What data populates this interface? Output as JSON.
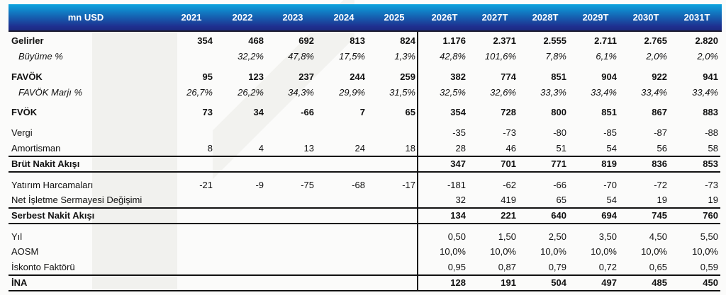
{
  "table": {
    "corner_label": "mn USD",
    "columns": [
      "2021",
      "2022",
      "2023",
      "2024",
      "2025",
      "2026T",
      "2027T",
      "2028T",
      "2029T",
      "2030T",
      "2031T"
    ],
    "rows": [
      {
        "label": "Gelirler",
        "style": "bold",
        "values": [
          "354",
          "468",
          "692",
          "813",
          "824",
          "1.176",
          "2.371",
          "2.555",
          "2.711",
          "2.765",
          "2.820"
        ]
      },
      {
        "label": "Büyüme %",
        "style": "ital",
        "values": [
          "",
          "32,2%",
          "47,8%",
          "17,5%",
          "1,3%",
          "42,8%",
          "101,6%",
          "7,8%",
          "6,1%",
          "2,0%",
          "2,0%"
        ]
      },
      {
        "label": "FAVÖK",
        "style": "bold",
        "values": [
          "95",
          "123",
          "237",
          "244",
          "259",
          "382",
          "774",
          "851",
          "904",
          "922",
          "941"
        ]
      },
      {
        "label": "FAVÖK Marjı %",
        "style": "ital",
        "values": [
          "26,7%",
          "26,2%",
          "34,3%",
          "29,9%",
          "31,5%",
          "32,5%",
          "32,6%",
          "33,3%",
          "33,4%",
          "33,4%",
          "33,4%"
        ]
      },
      {
        "label": "FVÖK",
        "style": "bold",
        "values": [
          "73",
          "34",
          "-66",
          "7",
          "65",
          "354",
          "728",
          "800",
          "851",
          "867",
          "883"
        ]
      },
      {
        "label": "Vergi",
        "style": "",
        "values": [
          "",
          "",
          "",
          "",
          "",
          "-35",
          "-73",
          "-80",
          "-85",
          "-87",
          "-88"
        ]
      },
      {
        "label": "Amortisman",
        "style": "",
        "values": [
          "8",
          "4",
          "13",
          "24",
          "18",
          "28",
          "46",
          "51",
          "54",
          "56",
          "58"
        ]
      },
      {
        "label": "Brüt Nakit Akışı",
        "style": "bold",
        "values": [
          "",
          "",
          "",
          "",
          "",
          "347",
          "701",
          "771",
          "819",
          "836",
          "853"
        ]
      },
      {
        "label": "Yatırım Harcamaları",
        "style": "",
        "values": [
          "-21",
          "-9",
          "-75",
          "-68",
          "-17",
          "-181",
          "-62",
          "-66",
          "-70",
          "-72",
          "-73"
        ]
      },
      {
        "label": "Net İşletme Sermayesi Değişimi",
        "style": "",
        "values": [
          "",
          "",
          "",
          "",
          "",
          "32",
          "419",
          "65",
          "54",
          "19",
          "19"
        ]
      },
      {
        "label": "Serbest Nakit Akışı",
        "style": "bold",
        "values": [
          "",
          "",
          "",
          "",
          "",
          "134",
          "221",
          "640",
          "694",
          "745",
          "760"
        ]
      },
      {
        "label": "Yıl",
        "style": "",
        "values": [
          "",
          "",
          "",
          "",
          "",
          "0,50",
          "1,50",
          "2,50",
          "3,50",
          "4,50",
          "5,50"
        ]
      },
      {
        "label": "AOSM",
        "style": "",
        "values": [
          "",
          "",
          "",
          "",
          "",
          "10,0%",
          "10,0%",
          "10,0%",
          "10,0%",
          "10,0%",
          "10,0%"
        ]
      },
      {
        "label": "İskonto Faktörü",
        "style": "",
        "values": [
          "",
          "",
          "",
          "",
          "",
          "0,95",
          "0,87",
          "0,79",
          "0,72",
          "0,65",
          "0,59"
        ]
      },
      {
        "label": "İNA",
        "style": "bold",
        "values": [
          "",
          "",
          "",
          "",
          "",
          "128",
          "191",
          "504",
          "497",
          "485",
          "450"
        ]
      }
    ]
  },
  "colors": {
    "header_top": "#0aa3de",
    "header_bottom": "#1e2f8f",
    "text": "#111111"
  }
}
